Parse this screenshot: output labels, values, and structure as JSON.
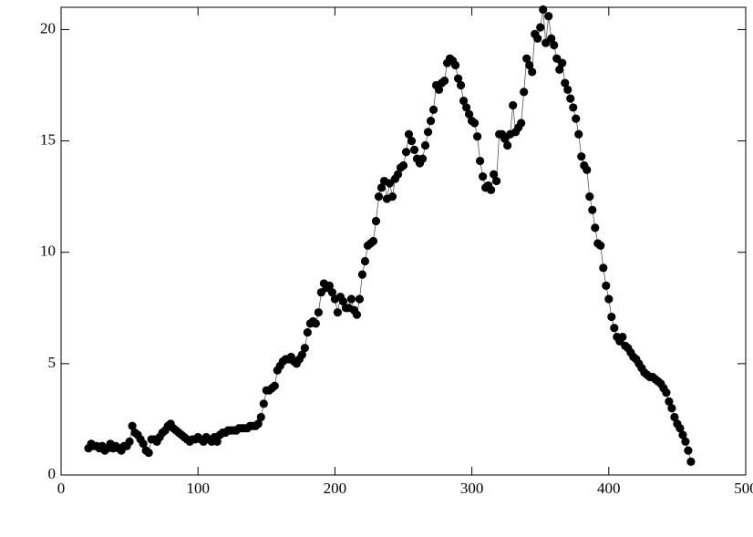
{
  "chart_data": {
    "type": "line",
    "x": [
      20,
      22,
      24,
      26,
      28,
      30,
      32,
      34,
      36,
      38,
      40,
      42,
      44,
      46,
      48,
      50,
      52,
      54,
      56,
      58,
      60,
      62,
      64,
      66,
      68,
      70,
      72,
      74,
      76,
      78,
      80,
      82,
      84,
      86,
      88,
      90,
      92,
      94,
      96,
      98,
      100,
      102,
      104,
      106,
      108,
      110,
      112,
      114,
      116,
      118,
      120,
      122,
      124,
      126,
      128,
      130,
      132,
      134,
      136,
      138,
      140,
      142,
      144,
      146,
      148,
      150,
      152,
      154,
      156,
      158,
      160,
      162,
      164,
      166,
      168,
      170,
      172,
      174,
      176,
      178,
      180,
      182,
      184,
      186,
      188,
      190,
      192,
      194,
      196,
      198,
      200,
      202,
      204,
      206,
      208,
      210,
      212,
      214,
      216,
      218,
      220,
      222,
      224,
      226,
      228,
      230,
      232,
      234,
      236,
      238,
      240,
      242,
      244,
      246,
      248,
      250,
      252,
      254,
      256,
      258,
      260,
      262,
      264,
      266,
      268,
      270,
      272,
      274,
      276,
      278,
      280,
      282,
      284,
      286,
      288,
      290,
      292,
      294,
      296,
      298,
      300,
      302,
      304,
      306,
      308,
      310,
      312,
      314,
      316,
      318,
      320,
      322,
      324,
      326,
      328,
      330,
      332,
      334,
      336,
      338,
      340,
      342,
      344,
      346,
      348,
      350,
      352,
      354,
      356,
      358,
      360,
      362,
      364,
      366,
      368,
      370,
      372,
      374,
      376,
      378,
      380,
      382,
      384,
      386,
      388,
      390,
      392,
      394,
      396,
      398,
      400,
      402,
      404,
      406,
      408,
      410,
      412,
      414,
      416,
      418,
      420,
      422,
      424,
      426,
      428,
      430,
      432,
      434,
      436,
      438,
      440,
      442,
      444,
      446,
      448,
      450,
      452,
      454,
      456,
      458,
      460
    ],
    "series": [
      {
        "color": "#000000",
        "values": [
          1.2,
          1.4,
          1.3,
          1.3,
          1.2,
          1.3,
          1.1,
          1.2,
          1.4,
          1.2,
          1.3,
          1.2,
          1.1,
          1.3,
          1.3,
          1.5,
          2.2,
          1.9,
          1.8,
          1.6,
          1.4,
          1.1,
          1.0,
          1.6,
          1.6,
          1.5,
          1.7,
          1.9,
          2.0,
          2.2,
          2.3,
          2.1,
          2.0,
          1.9,
          1.8,
          1.7,
          1.6,
          1.5,
          1.6,
          1.6,
          1.7,
          1.6,
          1.5,
          1.7,
          1.6,
          1.5,
          1.7,
          1.5,
          1.8,
          1.9,
          1.9,
          2.0,
          2.0,
          2.0,
          2.0,
          2.1,
          2.1,
          2.1,
          2.1,
          2.2,
          2.2,
          2.2,
          2.3,
          2.6,
          3.2,
          3.8,
          3.8,
          3.9,
          4.0,
          4.7,
          4.9,
          5.1,
          5.2,
          5.2,
          5.3,
          5.1,
          5.0,
          5.2,
          5.4,
          5.7,
          6.4,
          6.8,
          6.9,
          6.8,
          7.3,
          8.2,
          8.6,
          8.4,
          8.5,
          8.2,
          7.9,
          7.3,
          8.0,
          7.8,
          7.5,
          7.5,
          7.9,
          7.4,
          7.2,
          7.9,
          9.0,
          9.6,
          10.3,
          10.4,
          10.5,
          11.4,
          12.5,
          12.9,
          13.2,
          12.4,
          13.1,
          12.5,
          13.3,
          13.5,
          13.8,
          13.9,
          14.5,
          15.3,
          15.0,
          14.6,
          14.2,
          14.0,
          14.2,
          14.8,
          15.4,
          15.9,
          16.4,
          17.5,
          17.3,
          17.6,
          17.7,
          18.5,
          18.7,
          18.6,
          18.4,
          17.8,
          17.5,
          16.8,
          16.5,
          16.2,
          15.9,
          15.8,
          15.2,
          14.1,
          13.4,
          12.9,
          13.0,
          12.8,
          13.5,
          13.2,
          15.3,
          15.3,
          15.1,
          14.8,
          15.3,
          16.6,
          15.4,
          15.6,
          15.8,
          17.2,
          18.7,
          18.4,
          18.1,
          19.8,
          19.6,
          20.1,
          20.9,
          19.4,
          20.6,
          19.6,
          19.3,
          18.7,
          18.2,
          18.5,
          17.6,
          17.3,
          16.9,
          16.5,
          16.0,
          15.3,
          14.3,
          13.9,
          13.7,
          12.5,
          11.9,
          11.1,
          10.4,
          10.3,
          9.3,
          8.5,
          7.9,
          7.1,
          6.6,
          6.2,
          6.0,
          6.2,
          5.8,
          5.7,
          5.5,
          5.3,
          5.2,
          5.0,
          4.8,
          4.6,
          4.5,
          4.4,
          4.4,
          4.3,
          4.2,
          4.1,
          3.9,
          3.7,
          3.3,
          3.0,
          2.6,
          2.3,
          2.1,
          1.8,
          1.5,
          1.1,
          0.6
        ]
      }
    ],
    "xlim": [
      0,
      500
    ],
    "xticks": [
      0,
      100,
      200,
      300,
      400,
      500
    ],
    "ylim": [
      0,
      21
    ],
    "yticks": [
      0,
      5,
      10,
      15,
      20
    ]
  }
}
